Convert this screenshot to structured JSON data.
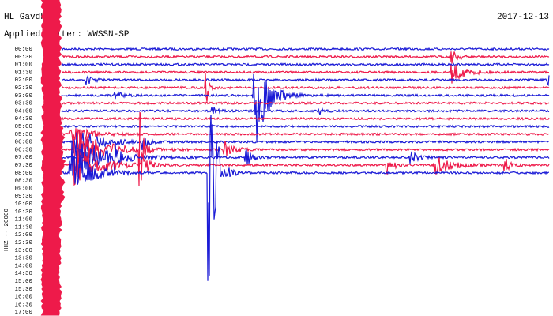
{
  "header": {
    "station": "HL Gavdh",
    "filter": "Applied filter: WWSSN-SP",
    "date": "2017-12-13"
  },
  "side_label": "HHZ -- 20000",
  "time_labels": [
    "00:00",
    "00:30",
    "01:00",
    "01:30",
    "02:00",
    "02:30",
    "03:00",
    "03:30",
    "04:00",
    "04:30",
    "05:00",
    "05:30",
    "06:00",
    "06:30",
    "07:00",
    "07:30",
    "08:00",
    "08:30",
    "09:00",
    "09:30",
    "10:00",
    "10:30",
    "11:00",
    "11:30",
    "12:00",
    "12:30",
    "13:00",
    "13:30",
    "14:00",
    "14:30",
    "15:00",
    "15:30",
    "16:00",
    "16:30",
    "17:00"
  ]
}
